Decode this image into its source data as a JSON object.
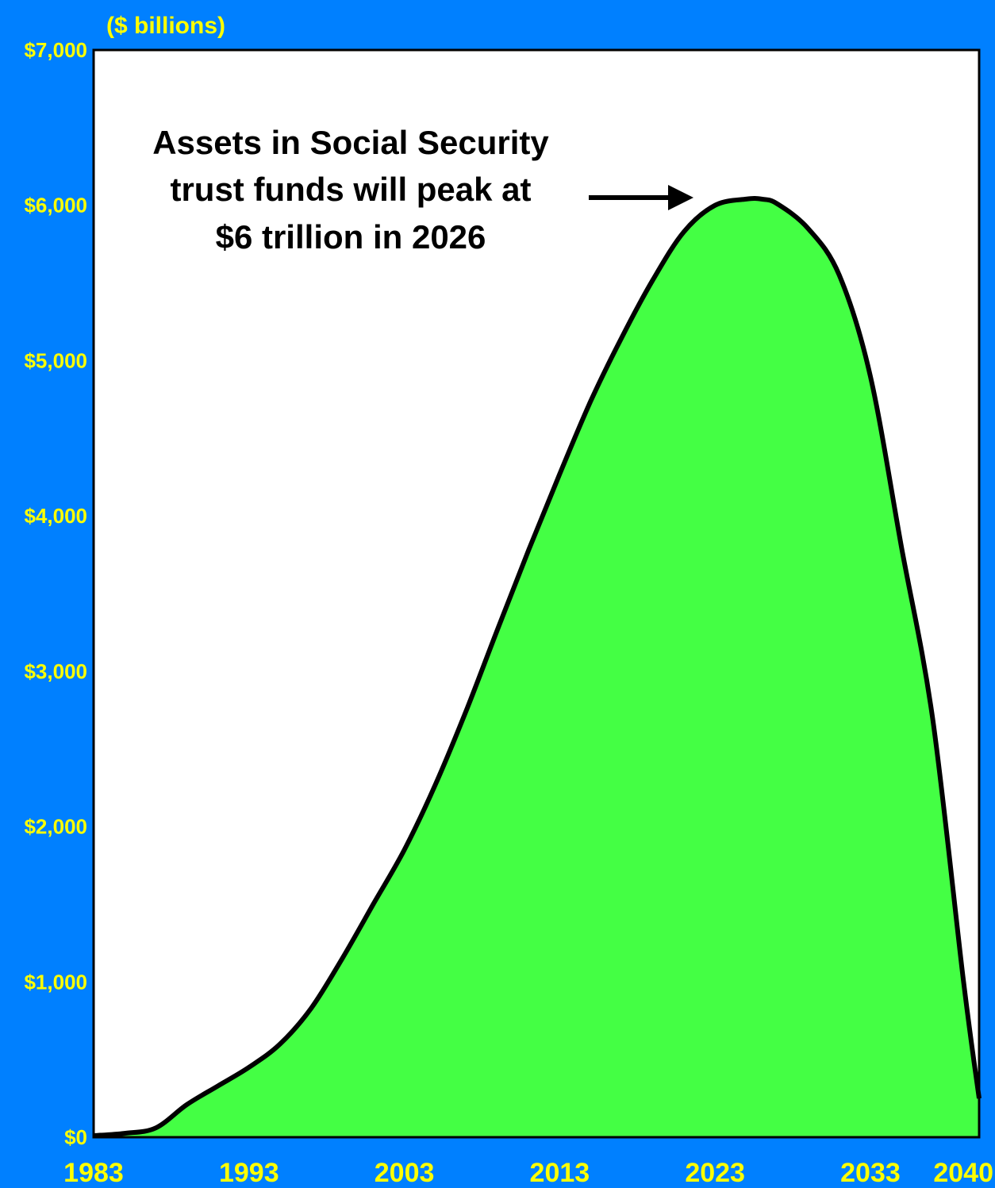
{
  "chart_data": {
    "type": "area",
    "unit_label": "($ billions)",
    "annotation": {
      "lines": [
        "Assets in Social Security",
        "trust funds will peak at",
        "$6 trillion in 2026"
      ]
    },
    "y_ticks": [
      "$0",
      "$1,000",
      "$2,000",
      "$3,000",
      "$4,000",
      "$5,000",
      "$6,000",
      "$7,000"
    ],
    "x_ticks": [
      "1983",
      "1993",
      "2003",
      "2013",
      "2023",
      "2033",
      "2040"
    ],
    "xlim": [
      1983,
      2040
    ],
    "ylim": [
      0,
      7000
    ],
    "x": [
      1983,
      1985,
      1987,
      1989,
      1991,
      1993,
      1995,
      1997,
      1999,
      2001,
      2003,
      2005,
      2007,
      2009,
      2011,
      2013,
      2015,
      2017,
      2019,
      2021,
      2023,
      2025,
      2026,
      2027,
      2029,
      2031,
      2033,
      2035,
      2037,
      2039,
      2040
    ],
    "values": [
      10,
      25,
      60,
      210,
      330,
      450,
      600,
      830,
      1150,
      1500,
      1850,
      2270,
      2750,
      3270,
      3780,
      4270,
      4740,
      5150,
      5520,
      5830,
      6000,
      6040,
      6040,
      6010,
      5850,
      5550,
      4900,
      3800,
      2700,
      1000,
      250
    ],
    "colors": {
      "background": "#0080FF",
      "plot": "#FFFFFF",
      "fill": "#44FF44",
      "line": "#000000",
      "tick_text": "#FFFF00"
    }
  }
}
